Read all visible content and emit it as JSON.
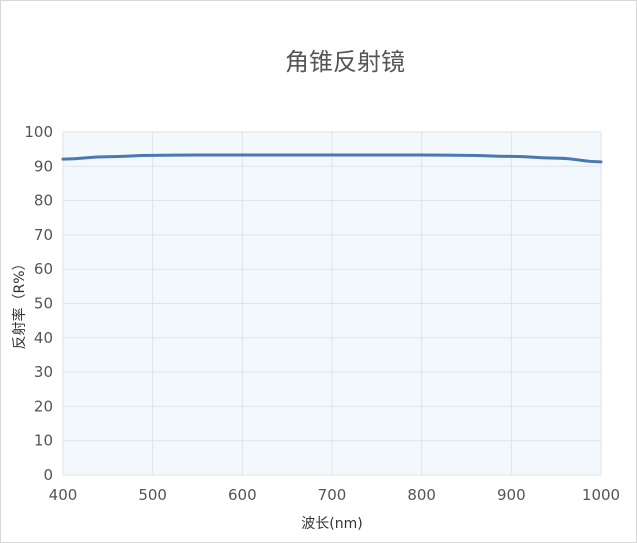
{
  "chart_data": {
    "type": "line",
    "title": "角锥反射镜",
    "xlabel": "波长(nm)",
    "ylabel": "反射率（R%）",
    "xlim": [
      400,
      1000
    ],
    "ylim": [
      0,
      100
    ],
    "xticks": [
      400,
      500,
      600,
      700,
      800,
      900,
      1000
    ],
    "yticks": [
      0,
      10,
      20,
      30,
      40,
      50,
      60,
      70,
      80,
      90,
      100
    ],
    "grid": true,
    "colors": {
      "line": "#4a78b0",
      "plot_background": "#f3f8fc",
      "grid": "#dde3e8"
    },
    "series": [
      {
        "x": [
          400,
          450,
          500,
          550,
          600,
          650,
          700,
          750,
          800,
          850,
          900,
          950,
          1000
        ],
        "values": [
          92.1,
          92.8,
          93.2,
          93.3,
          93.3,
          93.3,
          93.3,
          93.3,
          93.3,
          93.2,
          92.9,
          92.4,
          91.3
        ]
      }
    ]
  }
}
